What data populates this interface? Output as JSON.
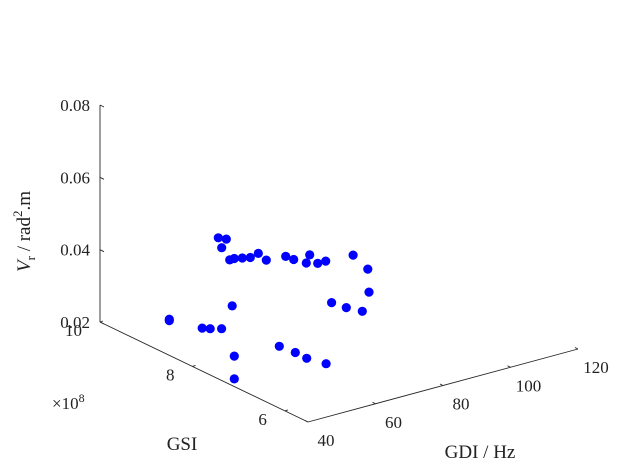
{
  "chart_data": {
    "type": "scatter",
    "title": "",
    "xlabel": "GDI / Hz",
    "ylabel": "GSI",
    "ylabel_multiplier": "×10",
    "ylabel_multiplier_exp": "8",
    "zlabel_prefix": "V",
    "zlabel_sub": "r",
    "zlabel_suffix": " / rad",
    "zlabel_sup": "2",
    "zlabel_tail": ".m",
    "xlim": [
      40,
      120
    ],
    "ylim": [
      5.5,
      10
    ],
    "zlim": [
      0.02,
      0.08
    ],
    "x_ticks": [
      40,
      60,
      80,
      100,
      120
    ],
    "x_tick_labels": [
      "40",
      "60",
      "80",
      "100",
      "120"
    ],
    "y_ticks": [
      6,
      8,
      10
    ],
    "y_tick_labels": [
      "6",
      "8",
      "10"
    ],
    "z_ticks": [
      0.02,
      0.04,
      0.06,
      0.08
    ],
    "z_tick_labels": [
      "0.02",
      "0.04",
      "0.06",
      "0.08"
    ],
    "grid": false,
    "marker_color": "#0000ff",
    "points": [
      {
        "x": 40,
        "y": 8.5,
        "z": 0.03
      },
      {
        "x": 40,
        "y": 8.5,
        "z": 0.0296
      },
      {
        "x": 47,
        "y": 8.3,
        "z": 0.027
      },
      {
        "x": 48,
        "y": 8.2,
        "z": 0.0272
      },
      {
        "x": 50,
        "y": 8.1,
        "z": 0.0273
      },
      {
        "x": 60,
        "y": 8.6,
        "z": 0.028
      },
      {
        "x": 62,
        "y": 8.7,
        "z": 0.013
      },
      {
        "x": 62,
        "y": 8.7,
        "z": 0.0067
      },
      {
        "x": 63,
        "y": 7.8,
        "z": 0.021
      },
      {
        "x": 65,
        "y": 7.6,
        "z": 0.02
      },
      {
        "x": 67,
        "y": 7.5,
        "z": 0.0185
      },
      {
        "x": 70,
        "y": 7.3,
        "z": 0.0175
      },
      {
        "x": 60,
        "y": 8.9,
        "z": 0.045
      },
      {
        "x": 61,
        "y": 8.8,
        "z": 0.045
      },
      {
        "x": 61,
        "y": 8.9,
        "z": 0.042
      },
      {
        "x": 62,
        "y": 8.7,
        "z": 0.04
      },
      {
        "x": 63,
        "y": 8.6,
        "z": 0.0405
      },
      {
        "x": 62,
        "y": 8.8,
        "z": 0.039
      },
      {
        "x": 64,
        "y": 8.5,
        "z": 0.041
      },
      {
        "x": 65,
        "y": 8.4,
        "z": 0.0425
      },
      {
        "x": 66,
        "y": 8.3,
        "z": 0.041
      },
      {
        "x": 69,
        "y": 8.1,
        "z": 0.0425
      },
      {
        "x": 70,
        "y": 8.0,
        "z": 0.042
      },
      {
        "x": 71,
        "y": 7.8,
        "z": 0.042
      },
      {
        "x": 73,
        "y": 7.7,
        "z": 0.042
      },
      {
        "x": 74,
        "y": 7.6,
        "z": 0.043
      },
      {
        "x": 72,
        "y": 7.8,
        "z": 0.044
      },
      {
        "x": 78,
        "y": 7.3,
        "z": 0.0455
      },
      {
        "x": 73,
        "y": 7.4,
        "z": 0.033
      },
      {
        "x": 76,
        "y": 7.3,
        "z": 0.0315
      },
      {
        "x": 78,
        "y": 7.1,
        "z": 0.0312
      },
      {
        "x": 80,
        "y": 7.1,
        "z": 0.036
      },
      {
        "x": 81,
        "y": 7.2,
        "z": 0.0415
      }
    ]
  }
}
